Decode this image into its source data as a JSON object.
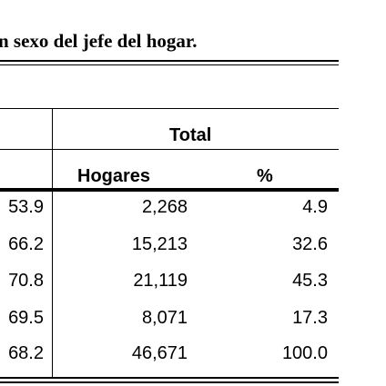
{
  "title": "n sexo del jefe del hogar.",
  "group_header": "Total",
  "columns": {
    "hogares": "Hogares",
    "pct": "%"
  },
  "rows": [
    {
      "left": "53.9",
      "hogares": "2,268",
      "pct": "4.9"
    },
    {
      "left": "66.2",
      "hogares": "15,213",
      "pct": "32.6"
    },
    {
      "left": "70.8",
      "hogares": "21,119",
      "pct": "45.3"
    },
    {
      "left": "69.5",
      "hogares": "8,071",
      "pct": "17.3"
    },
    {
      "left": "68.2",
      "hogares": "46,671",
      "pct": "100.0"
    }
  ]
}
